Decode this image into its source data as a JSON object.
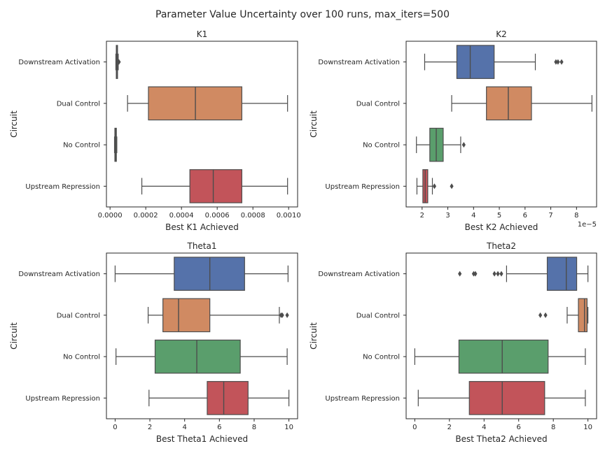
{
  "suptitle": "Parameter Value Uncertainty over 100 runs, max_iters=500",
  "colors": {
    "Downstream Activation": "#5572aa",
    "Dual Control": "#d08a62",
    "No Control": "#5a9e6c",
    "Upstream Repression": "#c2545a"
  },
  "chart_data": [
    {
      "type": "box",
      "title": "K1",
      "xlabel": "Best K1 Achieved",
      "ylabel": "Circuit",
      "xlim": [
        -2.02e-05,
        0.0010502
      ],
      "ticks": [
        0,
        0.0002,
        0.0004,
        0.0006,
        0.0008,
        0.001
      ],
      "tick_labels": [
        "0.0000",
        "0.0002",
        "0.0004",
        "0.0006",
        "0.0008",
        "0.0010"
      ],
      "offset_label": "",
      "categories": [
        "Downstream Activation",
        "Dual Control",
        "No Control",
        "Upstream Repression"
      ],
      "boxes": [
        {
          "whislo": 3.25e-05,
          "q1": 3.5e-05,
          "med": 3.75e-05,
          "q3": 4.2e-05,
          "whishi": 4.6e-05,
          "fliers": [
            5e-05
          ]
        },
        {
          "whislo": 9.8e-05,
          "q1": 0.000215,
          "med": 0.000478,
          "q3": 0.000738,
          "whishi": 0.000994,
          "fliers": []
        },
        {
          "whislo": 2.5e-05,
          "q1": 2.7e-05,
          "med": 3.05e-05,
          "q3": 3.55e-05,
          "whishi": 3.8e-05,
          "fliers": []
        },
        {
          "whislo": 0.000178,
          "q1": 0.000447,
          "med": 0.000578,
          "q3": 0.000738,
          "whishi": 0.000994,
          "fliers": []
        }
      ]
    },
    {
      "type": "box",
      "title": "K2",
      "xlabel": "Best K2 Achieved",
      "ylabel": "Circuit",
      "xlim": [
        1.38,
        8.78
      ],
      "ticks": [
        2,
        3,
        4,
        5,
        6,
        7,
        8
      ],
      "tick_labels": [
        "2",
        "3",
        "4",
        "5",
        "6",
        "7",
        "8"
      ],
      "offset_label": "1e−5",
      "categories": [
        "Downstream Activation",
        "Dual Control",
        "No Control",
        "Upstream Repression"
      ],
      "boxes": [
        {
          "whislo": 2.1,
          "q1": 3.35,
          "med": 3.87,
          "q3": 4.8,
          "whishi": 6.4,
          "fliers": [
            7.2,
            7.28,
            7.42
          ]
        },
        {
          "whislo": 3.15,
          "q1": 4.5,
          "med": 5.35,
          "q3": 6.25,
          "whishi": 8.6,
          "fliers": []
        },
        {
          "whislo": 1.78,
          "q1": 2.3,
          "med": 2.55,
          "q3": 2.82,
          "whishi": 3.5,
          "fliers": [
            3.62
          ]
        },
        {
          "whislo": 1.8,
          "q1": 2.03,
          "med": 2.12,
          "q3": 2.22,
          "whishi": 2.4,
          "fliers": [
            2.48,
            3.15
          ]
        }
      ]
    },
    {
      "type": "box",
      "title": "Theta1",
      "xlabel": "Best Theta1 Achieved",
      "ylabel": "Circuit",
      "xlim": [
        -0.5,
        10.5
      ],
      "ticks": [
        0,
        2,
        4,
        6,
        8,
        10
      ],
      "tick_labels": [
        "0",
        "2",
        "4",
        "6",
        "8",
        "10"
      ],
      "offset_label": "",
      "categories": [
        "Downstream Activation",
        "Dual Control",
        "No Control",
        "Upstream Repression"
      ],
      "boxes": [
        {
          "whislo": 0.0,
          "q1": 3.4,
          "med": 5.45,
          "q3": 7.45,
          "whishi": 9.95,
          "fliers": []
        },
        {
          "whislo": 1.9,
          "q1": 2.75,
          "med": 3.65,
          "q3": 5.45,
          "whishi": 9.45,
          "fliers": [
            9.55,
            9.62,
            9.9
          ]
        },
        {
          "whislo": 0.05,
          "q1": 2.3,
          "med": 4.7,
          "q3": 7.2,
          "whishi": 9.9,
          "fliers": []
        },
        {
          "whislo": 1.95,
          "q1": 5.3,
          "med": 6.25,
          "q3": 7.65,
          "whishi": 10.0,
          "fliers": []
        }
      ]
    },
    {
      "type": "box",
      "title": "Theta2",
      "xlabel": "Best Theta2 Achieved",
      "ylabel": "Circuit",
      "xlim": [
        -0.5,
        10.5
      ],
      "ticks": [
        0,
        2,
        4,
        6,
        8,
        10
      ],
      "tick_labels": [
        "0",
        "2",
        "4",
        "6",
        "8",
        "10"
      ],
      "offset_label": "",
      "categories": [
        "Downstream Activation",
        "Dual Control",
        "No Control",
        "Upstream Repression"
      ],
      "boxes": [
        {
          "whislo": 5.3,
          "q1": 7.65,
          "med": 8.75,
          "q3": 9.35,
          "whishi": 10.0,
          "fliers": [
            2.6,
            3.4,
            3.5,
            4.6,
            4.8,
            5.0
          ]
        },
        {
          "whislo": 8.8,
          "q1": 9.45,
          "med": 9.8,
          "q3": 9.95,
          "whishi": 10.0,
          "fliers": [
            7.25,
            7.55
          ]
        },
        {
          "whislo": 0.0,
          "q1": 2.55,
          "med": 5.05,
          "q3": 7.7,
          "whishi": 9.85,
          "fliers": []
        },
        {
          "whislo": 0.2,
          "q1": 3.15,
          "med": 5.05,
          "q3": 7.5,
          "whishi": 9.85,
          "fliers": []
        }
      ]
    }
  ]
}
